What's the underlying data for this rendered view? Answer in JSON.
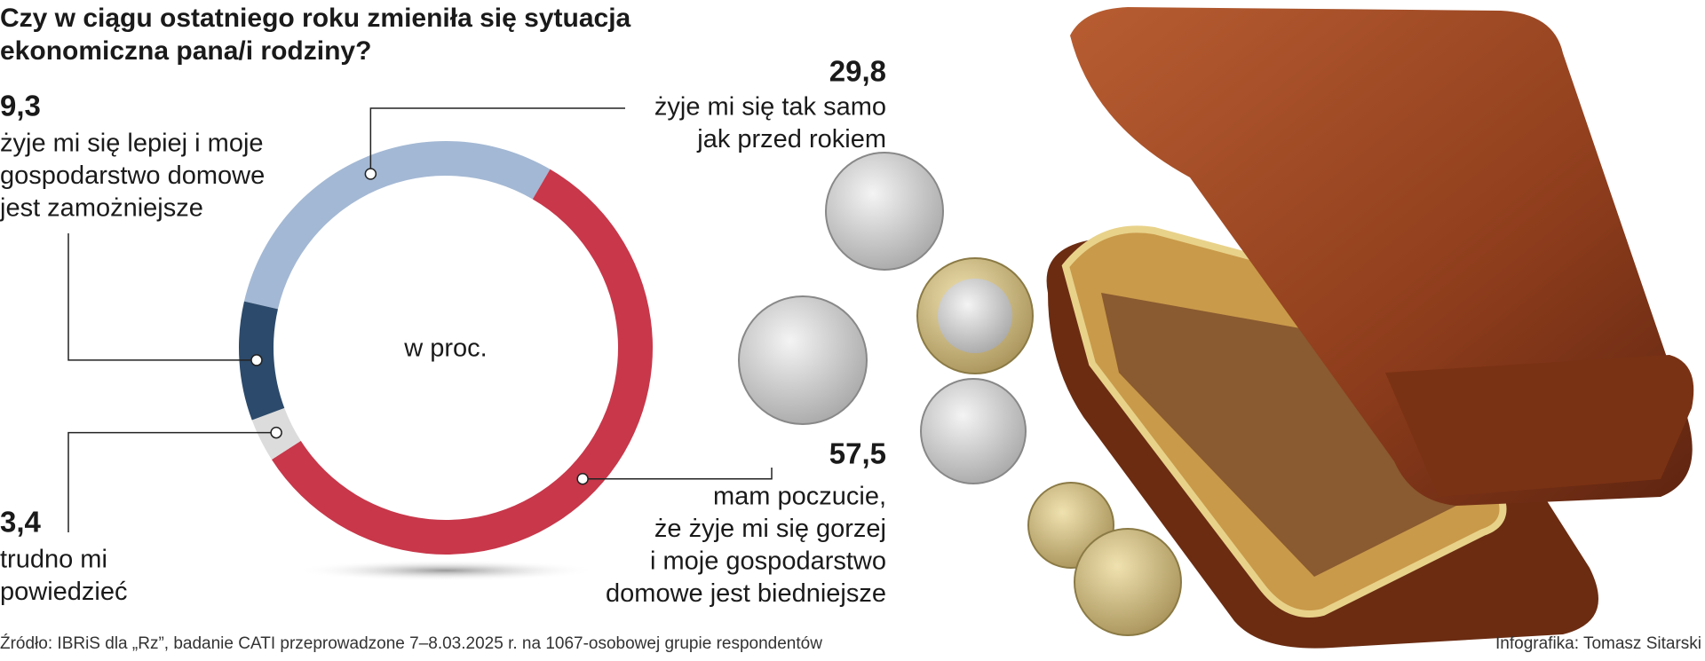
{
  "chart_data": {
    "type": "donut",
    "title": [
      "Czy w ciągu ostatniego roku zmieniła się sytuacja",
      "ekonomiczna pana/i rodziny?"
    ],
    "center_label": "w proc.",
    "categories": [
      [
        "żyje mi się tak samo",
        "jak przed rokiem"
      ],
      [
        "mam poczucie,",
        "że żyje mi się gorzej",
        "i moje gospodarstwo",
        "domowe jest biedniejsze"
      ],
      [
        "trudno mi",
        "powiedzieć"
      ],
      [
        "żyje mi się lepiej i moje",
        "gospodarstwo domowe",
        "jest zamożniejsze"
      ]
    ],
    "values": [
      29.8,
      57.5,
      3.4,
      9.3
    ],
    "value_labels": [
      "29,8",
      "57,5",
      "3,4",
      "9,3"
    ],
    "colors": [
      "#a3b8d4",
      "#c8374a",
      "#dcdcdc",
      "#2c4a6b"
    ],
    "source": "Źródło: IBRiS dla „Rz”, badanie CATI przeprowadzone 7–8.03.2025 r. na 1067-osobowej grupie respondentów",
    "credit": "Infografika: Tomasz Sitarski"
  }
}
